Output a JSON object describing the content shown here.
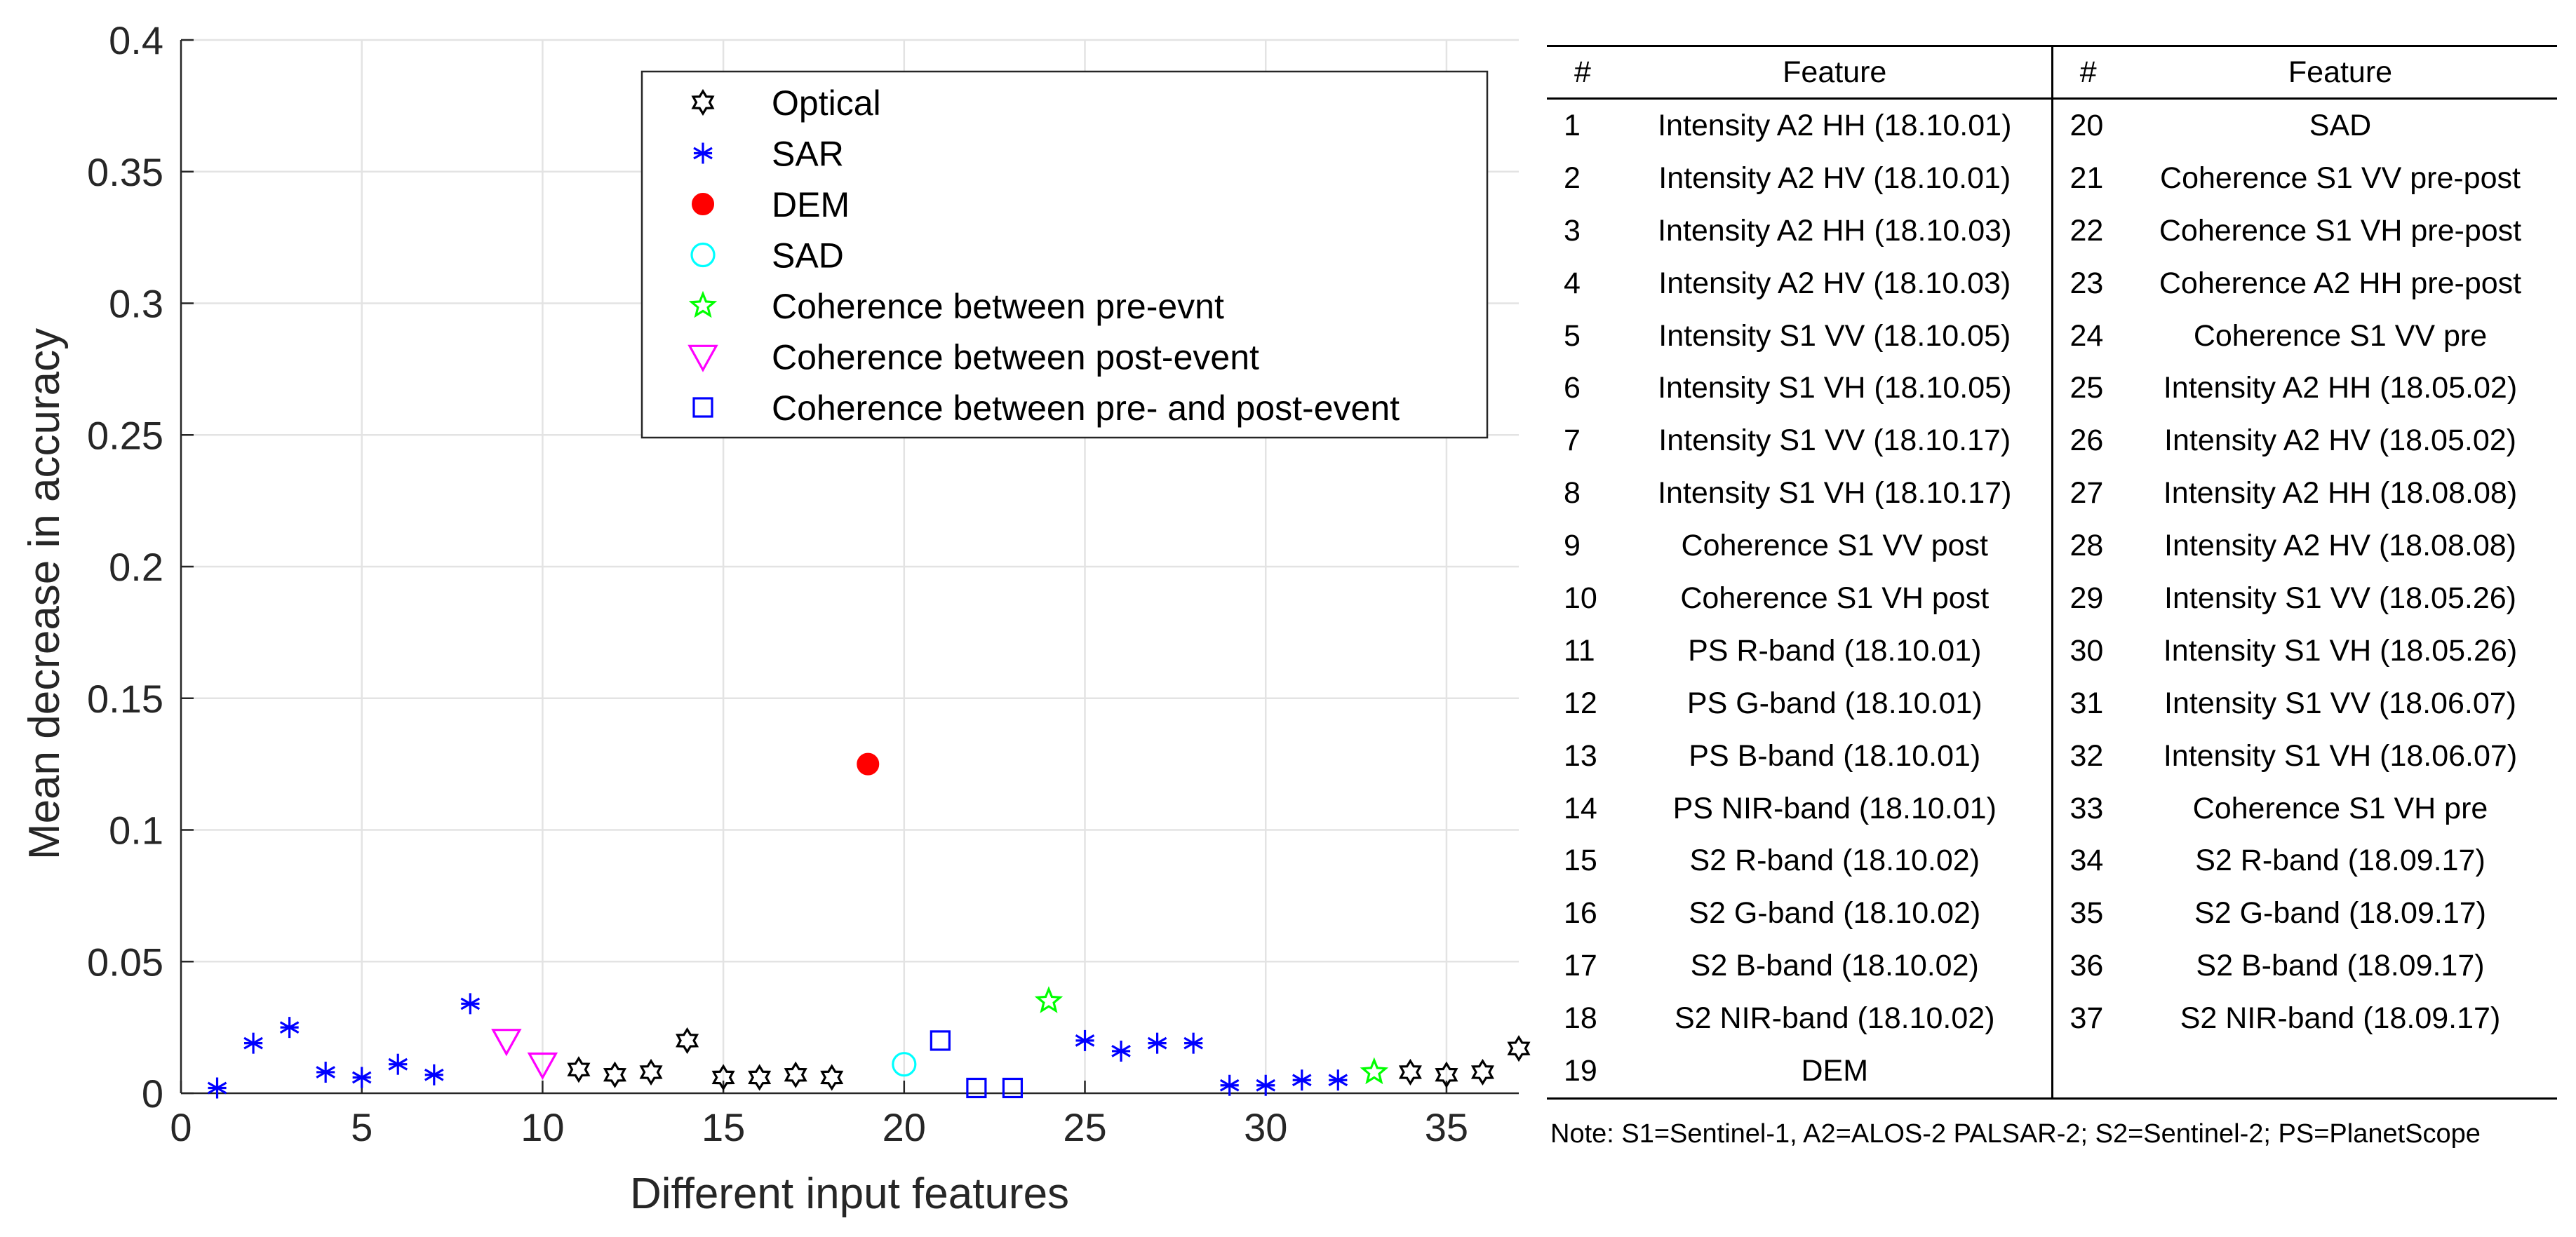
{
  "chart_data": {
    "type": "scatter",
    "xlabel": "Different input features",
    "ylabel": "Mean decrease in accuracy",
    "xlim": [
      0,
      37
    ],
    "ylim": [
      0,
      0.4
    ],
    "xticks": [
      0,
      5,
      10,
      15,
      20,
      25,
      30,
      35
    ],
    "yticks": [
      0,
      0.05,
      0.1,
      0.15,
      0.2,
      0.25,
      0.3,
      0.35,
      0.4
    ],
    "xtick_labels": [
      "0",
      "5",
      "10",
      "15",
      "20",
      "25",
      "30",
      "35"
    ],
    "ytick_labels": [
      "0",
      "0.05",
      "0.1",
      "0.15",
      "0.2",
      "0.25",
      "0.3",
      "0.35",
      "0.4"
    ],
    "grid": true,
    "legend_position": "top-center",
    "series": [
      {
        "name": "Optical",
        "marker": "hexagram",
        "color": "#000000",
        "x": [
          11,
          12,
          13,
          14,
          15,
          16,
          17,
          18,
          34,
          35,
          36,
          37
        ],
        "y": [
          0.009,
          0.007,
          0.008,
          0.02,
          0.006,
          0.006,
          0.007,
          0.006,
          0.008,
          0.007,
          0.008,
          0.017
        ]
      },
      {
        "name": "SAR",
        "marker": "asterisk",
        "color": "#0000ff",
        "x": [
          1,
          2,
          3,
          4,
          5,
          6,
          7,
          8,
          25,
          26,
          27,
          28,
          29,
          30,
          31,
          32
        ],
        "y": [
          0.002,
          0.019,
          0.025,
          0.008,
          0.006,
          0.011,
          0.007,
          0.034,
          0.02,
          0.016,
          0.019,
          0.019,
          0.003,
          0.003,
          0.005,
          0.005
        ]
      },
      {
        "name": "DEM",
        "marker": "filled-circle",
        "color": "#ff0000",
        "x": [
          19
        ],
        "y": [
          0.125
        ]
      },
      {
        "name": "SAD",
        "marker": "circle",
        "color": "#00ffff",
        "x": [
          20
        ],
        "y": [
          0.011
        ]
      },
      {
        "name": "Coherence between pre-evnt",
        "marker": "pentagram",
        "color": "#00ff00",
        "x": [
          24,
          33
        ],
        "y": [
          0.035,
          0.008
        ]
      },
      {
        "name": "Coherence between post-event",
        "marker": "triangle-down",
        "color": "#ff00ff",
        "x": [
          9,
          10
        ],
        "y": [
          0.02,
          0.011
        ]
      },
      {
        "name": "Coherence between pre- and post-event",
        "marker": "square",
        "color": "#0000ff",
        "x": [
          21,
          22,
          23
        ],
        "y": [
          0.02,
          0.002,
          0.002
        ]
      }
    ]
  },
  "table": {
    "headers": {
      "num": "#",
      "feature": "Feature"
    },
    "left": [
      [
        "1",
        "Intensity A2 HH (18.10.01)"
      ],
      [
        "2",
        "Intensity A2 HV (18.10.01)"
      ],
      [
        "3",
        "Intensity A2 HH (18.10.03)"
      ],
      [
        "4",
        "Intensity A2 HV (18.10.03)"
      ],
      [
        "5",
        "Intensity S1 VV (18.10.05)"
      ],
      [
        "6",
        "Intensity S1 VH (18.10.05)"
      ],
      [
        "7",
        "Intensity S1 VV (18.10.17)"
      ],
      [
        "8",
        "Intensity S1 VH (18.10.17)"
      ],
      [
        "9",
        "Coherence S1 VV post"
      ],
      [
        "10",
        "Coherence S1 VH post"
      ],
      [
        "11",
        "PS R-band (18.10.01)"
      ],
      [
        "12",
        "PS G-band (18.10.01)"
      ],
      [
        "13",
        "PS B-band (18.10.01)"
      ],
      [
        "14",
        "PS NIR-band (18.10.01)"
      ],
      [
        "15",
        "S2 R-band (18.10.02)"
      ],
      [
        "16",
        "S2 G-band (18.10.02)"
      ],
      [
        "17",
        "S2 B-band (18.10.02)"
      ],
      [
        "18",
        "S2 NIR-band (18.10.02)"
      ],
      [
        "19",
        "DEM"
      ]
    ],
    "right": [
      [
        "20",
        "SAD"
      ],
      [
        "21",
        "Coherence S1 VV pre-post"
      ],
      [
        "22",
        "Coherence S1 VH pre-post"
      ],
      [
        "23",
        "Coherence A2 HH pre-post"
      ],
      [
        "24",
        "Coherence S1 VV pre"
      ],
      [
        "25",
        "Intensity A2 HH (18.05.02)"
      ],
      [
        "26",
        "Intensity A2 HV (18.05.02)"
      ],
      [
        "27",
        "Intensity A2 HH (18.08.08)"
      ],
      [
        "28",
        "Intensity A2 HV (18.08.08)"
      ],
      [
        "29",
        "Intensity S1 VV (18.05.26)"
      ],
      [
        "30",
        "Intensity S1 VH (18.05.26)"
      ],
      [
        "31",
        "Intensity S1 VV (18.06.07)"
      ],
      [
        "32",
        "Intensity S1 VH (18.06.07)"
      ],
      [
        "33",
        "Coherence S1 VH pre"
      ],
      [
        "34",
        "S2 R-band (18.09.17)"
      ],
      [
        "35",
        "S2 G-band (18.09.17)"
      ],
      [
        "36",
        "S2 B-band (18.09.17)"
      ],
      [
        "37",
        "S2 NIR-band (18.09.17)"
      ],
      [
        "",
        ""
      ]
    ],
    "note": "Note: S1=Sentinel-1, A2=ALOS-2 PALSAR-2; S2=Sentinel-2; PS=PlanetScope"
  }
}
